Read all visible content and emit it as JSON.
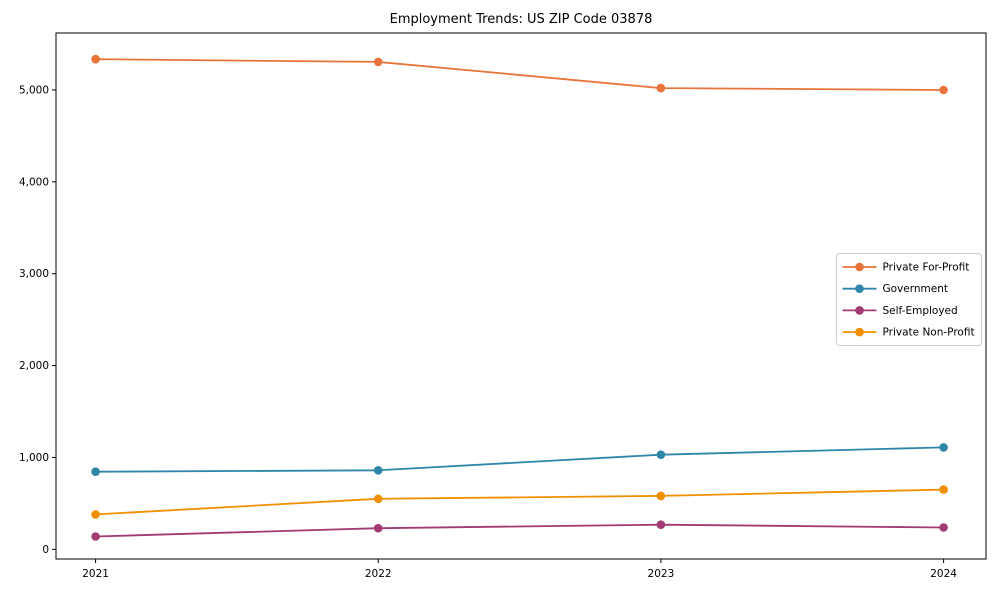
{
  "chart_data": {
    "type": "line",
    "title": "Employment Trends: US ZIP Code 03878",
    "xlabel": "",
    "ylabel": "",
    "x": [
      2021,
      2022,
      2023,
      2024
    ],
    "xtick_labels": [
      "2021",
      "2022",
      "2023",
      "2024"
    ],
    "ytick_values": [
      0,
      1000,
      2000,
      3000,
      4000,
      5000
    ],
    "ytick_labels": [
      "0",
      "1,000",
      "2,000",
      "3,000",
      "4,000",
      "5,000"
    ],
    "xlim": [
      2020.86,
      2024.15
    ],
    "ylim": [
      -105,
      5620
    ],
    "grid": false,
    "legend_position": "center right",
    "axis_color": "#000000",
    "legend_border_color": "#cccccc",
    "series": [
      {
        "name": "Private For-Profit",
        "color": "#E8743B",
        "values": [
          5335,
          5305,
          5020,
          5000
        ]
      },
      {
        "name": "Government",
        "color": "#2E86AB",
        "values": [
          845,
          860,
          1030,
          1110
        ]
      },
      {
        "name": "Self-Employed",
        "color": "#A23B72",
        "values": [
          140,
          230,
          268,
          238
        ]
      },
      {
        "name": "Private Non-Profit",
        "color": "#F18F01",
        "values": [
          380,
          550,
          582,
          650
        ]
      }
    ]
  }
}
